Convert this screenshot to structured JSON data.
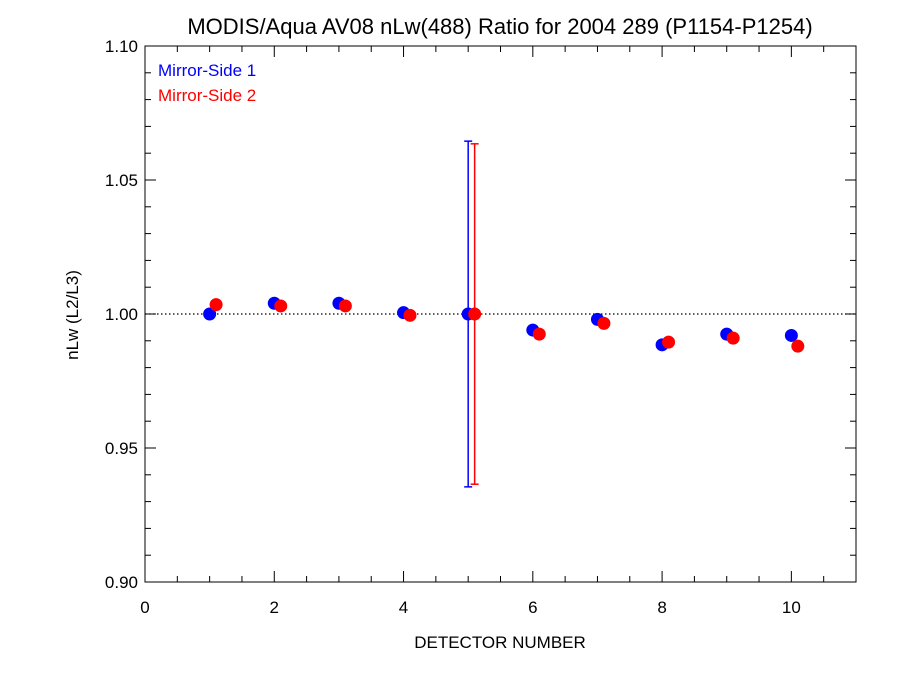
{
  "chart_data": {
    "type": "scatter",
    "title": "MODIS/Aqua AV08 nLw(488) Ratio for 2004 289 (P1154-P1254)",
    "xlabel": "DETECTOR NUMBER",
    "ylabel": "nLw (L2/L3)",
    "xlim": [
      0,
      11
    ],
    "ylim": [
      0.9,
      1.1
    ],
    "x_ticks": [
      0,
      2,
      4,
      6,
      8,
      10
    ],
    "x_tick_labels": [
      "0",
      "2",
      "4",
      "6",
      "8",
      "10"
    ],
    "y_ticks": [
      0.9,
      0.95,
      1.0,
      1.05,
      1.1
    ],
    "y_tick_labels": [
      "0.90",
      "0.95",
      "1.00",
      "1.05",
      "1.10"
    ],
    "reference_line": 1.0,
    "grid": false,
    "legend_position": "top-left",
    "series": [
      {
        "name": "Mirror-Side 1",
        "color": "#0000ff",
        "x": [
          1,
          2,
          3,
          4,
          5,
          6,
          7,
          8,
          9,
          10
        ],
        "y": [
          1.0,
          1.004,
          1.004,
          1.0005,
          1.0,
          0.994,
          0.998,
          0.9885,
          0.9925,
          0.992
        ],
        "error_bar": {
          "x": 5,
          "low": 0.9355,
          "high": 1.0645
        }
      },
      {
        "name": "Mirror-Side 2",
        "color": "#ff0000",
        "x": [
          1.1,
          2.1,
          3.1,
          4.1,
          5.1,
          6.1,
          7.1,
          8.1,
          9.1,
          10.1
        ],
        "y": [
          1.0035,
          1.003,
          1.003,
          0.9995,
          1.0,
          0.9925,
          0.9965,
          0.9895,
          0.991,
          0.988
        ],
        "error_bar": {
          "x": 5.1,
          "low": 0.9365,
          "high": 1.0635
        }
      }
    ]
  }
}
